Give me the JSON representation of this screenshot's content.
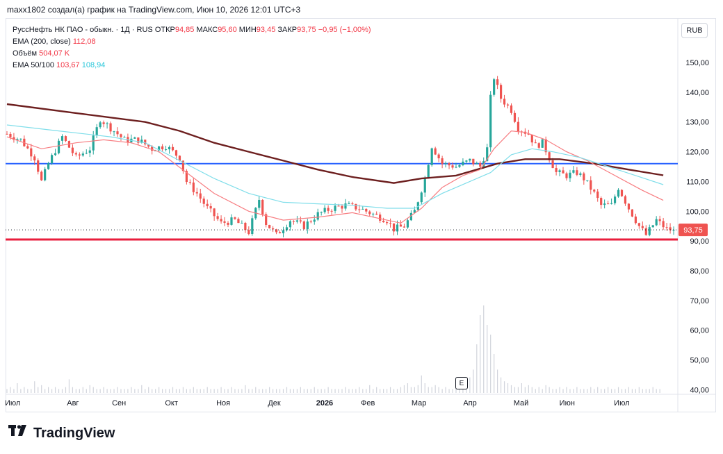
{
  "header": {
    "text": "maxx1802 создал(а) график на TradingView.com, Июн 10, 2026 12:01 UTC+3"
  },
  "legend": {
    "symbol_line": "РуссНефть НК ПАО - обыкн. · 1Д · RUS",
    "open_label": "ОТКР",
    "open_value": "94,85",
    "high_label": "МАКС",
    "high_value": "95,60",
    "low_label": "МИН",
    "low_value": "93,45",
    "close_label": "ЗАКР",
    "close_value": "93,75",
    "change_value": "−0,95 (−1,00%)",
    "ema200_label": "EMA (200, close)",
    "ema200_value": "112,08",
    "volume_label": "Объём",
    "volume_value": "504,07 K",
    "ema50_100_label": "EMA 50/100",
    "ema50_value": "103,67",
    "ema100_value": "108,94"
  },
  "currency_button": "RUB",
  "last_price_tag": "93,75",
  "events_badge": "E",
  "brand": {
    "name": "TradingView"
  },
  "colors": {
    "up": "#26a69a",
    "down": "#ef5350",
    "ema200": "#6d1f1f",
    "ema50": "#f77c80",
    "ema100": "#80deea",
    "support_line": "#e91e3c",
    "resistance_line": "#2962ff",
    "volume": "#d1d4dc"
  },
  "chart_data": {
    "type": "candlestick",
    "title": "РуссНефть НК ПАО - обыкн. · 1Д · RUS",
    "ylim": [
      38,
      157
    ],
    "y_ticks": [
      "150,00",
      "140,00",
      "130,00",
      "120,00",
      "110,00",
      "100,00",
      "90,00",
      "80,00",
      "70,00",
      "60,00",
      "50,00",
      "40,00"
    ],
    "y_tick_values": [
      150,
      140,
      130,
      120,
      110,
      100,
      90,
      80,
      70,
      60,
      50,
      40
    ],
    "x_ticks": [
      "Июл",
      "Авг",
      "Сен",
      "Окт",
      "Ноя",
      "Дек",
      "2026",
      "Фев",
      "Мар",
      "Апр",
      "Май",
      "Июн",
      "Июл"
    ],
    "horizontal_lines": [
      {
        "name": "support",
        "value": 90.5
      },
      {
        "name": "resistance",
        "value": 116
      }
    ],
    "price_path": [
      [
        0,
        126
      ],
      [
        4,
        124
      ],
      [
        8,
        118
      ],
      [
        10,
        110
      ],
      [
        12,
        116
      ],
      [
        16,
        125
      ],
      [
        20,
        118
      ],
      [
        24,
        121
      ],
      [
        27,
        131
      ],
      [
        30,
        128
      ],
      [
        34,
        124
      ],
      [
        38,
        124
      ],
      [
        42,
        121
      ],
      [
        46,
        122
      ],
      [
        50,
        118
      ],
      [
        52,
        110
      ],
      [
        55,
        106
      ],
      [
        58,
        101
      ],
      [
        62,
        96
      ],
      [
        66,
        97
      ],
      [
        70,
        93
      ],
      [
        73,
        104
      ],
      [
        75,
        96
      ],
      [
        78,
        92
      ],
      [
        82,
        97
      ],
      [
        86,
        95
      ],
      [
        90,
        99
      ],
      [
        94,
        101
      ],
      [
        98,
        102
      ],
      [
        102,
        101
      ],
      [
        106,
        99
      ],
      [
        110,
        97
      ],
      [
        112,
        94
      ],
      [
        115,
        95
      ],
      [
        118,
        100
      ],
      [
        121,
        111
      ],
      [
        123,
        122
      ],
      [
        126,
        116
      ],
      [
        130,
        115
      ],
      [
        134,
        117
      ],
      [
        137,
        115
      ],
      [
        139,
        121
      ],
      [
        140,
        138
      ],
      [
        141,
        145
      ],
      [
        143,
        138
      ],
      [
        146,
        134
      ],
      [
        148,
        128
      ],
      [
        151,
        126
      ],
      [
        153,
        122
      ],
      [
        155,
        123
      ],
      [
        157,
        118
      ],
      [
        159,
        113
      ],
      [
        162,
        112
      ],
      [
        165,
        113
      ],
      [
        167,
        111
      ],
      [
        170,
        106
      ],
      [
        172,
        102
      ],
      [
        175,
        102
      ],
      [
        177,
        108
      ],
      [
        180,
        101
      ],
      [
        183,
        95
      ],
      [
        185,
        92
      ],
      [
        188,
        97
      ],
      [
        191,
        94
      ],
      [
        193,
        93.75
      ]
    ],
    "series": [
      {
        "name": "EMA (200, close)",
        "points": [
          [
            0,
            136
          ],
          [
            20,
            133
          ],
          [
            40,
            130
          ],
          [
            50,
            127
          ],
          [
            60,
            123
          ],
          [
            70,
            120
          ],
          [
            80,
            117
          ],
          [
            90,
            114
          ],
          [
            100,
            111.5
          ],
          [
            112,
            109.5
          ],
          [
            120,
            111
          ],
          [
            130,
            112
          ],
          [
            136,
            114
          ],
          [
            142,
            116
          ],
          [
            150,
            117.5
          ],
          [
            160,
            117.5
          ],
          [
            170,
            116
          ],
          [
            180,
            114
          ],
          [
            190,
            112.08
          ]
        ]
      },
      {
        "name": "EMA 50",
        "points": [
          [
            0,
            125
          ],
          [
            10,
            121
          ],
          [
            20,
            123
          ],
          [
            28,
            124
          ],
          [
            36,
            123
          ],
          [
            44,
            120
          ],
          [
            52,
            113
          ],
          [
            60,
            106
          ],
          [
            70,
            100
          ],
          [
            80,
            97
          ],
          [
            90,
            98
          ],
          [
            100,
            99.5
          ],
          [
            110,
            97
          ],
          [
            114,
            96
          ],
          [
            120,
            101
          ],
          [
            126,
            108
          ],
          [
            132,
            112
          ],
          [
            137,
            114
          ],
          [
            141,
            121
          ],
          [
            146,
            127
          ],
          [
            150,
            126.5
          ],
          [
            156,
            124
          ],
          [
            162,
            120
          ],
          [
            168,
            117
          ],
          [
            176,
            112
          ],
          [
            184,
            107
          ],
          [
            190,
            103.67
          ]
        ]
      },
      {
        "name": "EMA 100",
        "points": [
          [
            0,
            129
          ],
          [
            15,
            127
          ],
          [
            30,
            125
          ],
          [
            40,
            123
          ],
          [
            50,
            117
          ],
          [
            60,
            111
          ],
          [
            70,
            106
          ],
          [
            80,
            103
          ],
          [
            90,
            102.5
          ],
          [
            100,
            102
          ],
          [
            110,
            101
          ],
          [
            118,
            101
          ],
          [
            126,
            106
          ],
          [
            134,
            110
          ],
          [
            140,
            113
          ],
          [
            146,
            119
          ],
          [
            152,
            121
          ],
          [
            158,
            120
          ],
          [
            166,
            118
          ],
          [
            174,
            115
          ],
          [
            182,
            112
          ],
          [
            190,
            108.94
          ]
        ]
      }
    ],
    "volume_relative": [
      2,
      3,
      2,
      5,
      2,
      3,
      2,
      2,
      6,
      3,
      4,
      2,
      3,
      2,
      3,
      2,
      2,
      3,
      7,
      3,
      2,
      2,
      3,
      2,
      4,
      3,
      2,
      2,
      3,
      2,
      2,
      2,
      3,
      2,
      2,
      2,
      3,
      2,
      2,
      4,
      2,
      3,
      2,
      2,
      3,
      2,
      2,
      2,
      3,
      2,
      2,
      3,
      2,
      2,
      3,
      2,
      2,
      2,
      3,
      2,
      2,
      2,
      3,
      2,
      2,
      3,
      2,
      2,
      2,
      4,
      2,
      2,
      3,
      2,
      2,
      2,
      3,
      2,
      2,
      2,
      2,
      3,
      2,
      2,
      2,
      3,
      2,
      2,
      2,
      3,
      2,
      2,
      2,
      3,
      2,
      2,
      2,
      2,
      3,
      2,
      2,
      2,
      3,
      2,
      2,
      4,
      2,
      3,
      2,
      2,
      2,
      3,
      2,
      2,
      3,
      4,
      5,
      3,
      3,
      4,
      9,
      5,
      3,
      3,
      4,
      3,
      2,
      3,
      2,
      2,
      3,
      2,
      3,
      5,
      8,
      12,
      25,
      40,
      45,
      35,
      30,
      20,
      12,
      8,
      6,
      5,
      4,
      3,
      3,
      5,
      3,
      4,
      3,
      2,
      3,
      2,
      4,
      3,
      2,
      2,
      3,
      2,
      3,
      2,
      2,
      3,
      2,
      2,
      2,
      3,
      2,
      3,
      2,
      2,
      3,
      2,
      2,
      3,
      2,
      2,
      3,
      2,
      2,
      3,
      2,
      2,
      2,
      3,
      2,
      2
    ]
  }
}
